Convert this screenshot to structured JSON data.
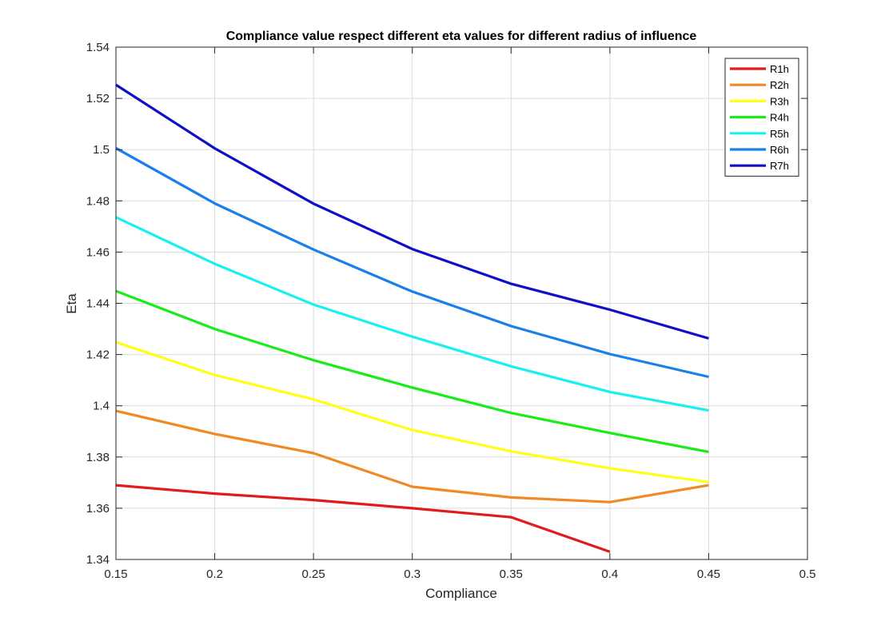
{
  "chart_data": {
    "type": "line",
    "title": "Compliance value respect different eta values for different radius of influence",
    "xlabel": "Compliance",
    "ylabel": "Eta",
    "xlim": [
      0.15,
      0.5
    ],
    "ylim": [
      1.34,
      1.54
    ],
    "xticks": [
      0.15,
      0.2,
      0.25,
      0.3,
      0.35,
      0.4,
      0.45,
      0.5
    ],
    "xtick_labels": [
      "0.15",
      "0.2",
      "0.25",
      "0.3",
      "0.35",
      "0.4",
      "0.45",
      "0.5"
    ],
    "yticks": [
      1.34,
      1.36,
      1.38,
      1.4,
      1.42,
      1.44,
      1.46,
      1.48,
      1.5,
      1.52,
      1.54
    ],
    "ytick_labels": [
      "1.34",
      "1.36",
      "1.38",
      "1.4",
      "1.42",
      "1.44",
      "1.46",
      "1.48",
      "1.5",
      "1.52",
      "1.54"
    ],
    "grid": true,
    "legend_position": "top-right",
    "series": [
      {
        "name": "R1h",
        "color": "#e31a1c",
        "x": [
          0.15,
          0.2,
          0.25,
          0.3,
          0.35,
          0.4
        ],
        "values": [
          1.369,
          1.3657,
          1.3632,
          1.36,
          1.3565,
          1.343
        ]
      },
      {
        "name": "R2h",
        "color": "#f08a24",
        "x": [
          0.15,
          0.2,
          0.25,
          0.3,
          0.35,
          0.4,
          0.45
        ],
        "values": [
          1.398,
          1.389,
          1.3815,
          1.3684,
          1.3642,
          1.3624,
          1.369
        ]
      },
      {
        "name": "R3h",
        "color": "#ffff1a",
        "x": [
          0.15,
          0.2,
          0.25,
          0.3,
          0.35,
          0.4,
          0.45
        ],
        "values": [
          1.4248,
          1.412,
          1.4025,
          1.3905,
          1.3822,
          1.3756,
          1.3702
        ]
      },
      {
        "name": "R4h",
        "color": "#1aeb1a",
        "x": [
          0.15,
          0.2,
          0.25,
          0.3,
          0.35,
          0.4,
          0.45
        ],
        "values": [
          1.4448,
          1.43,
          1.4178,
          1.4071,
          1.3972,
          1.3894,
          1.382
        ]
      },
      {
        "name": "R5h",
        "color": "#1af0f0",
        "x": [
          0.15,
          0.2,
          0.25,
          0.3,
          0.35,
          0.4,
          0.45
        ],
        "values": [
          1.4736,
          1.4554,
          1.4395,
          1.427,
          1.4154,
          1.4054,
          1.3982
        ]
      },
      {
        "name": "R6h",
        "color": "#1a7fe8",
        "x": [
          0.15,
          0.2,
          0.25,
          0.3,
          0.35,
          0.4,
          0.45
        ],
        "values": [
          1.5006,
          1.479,
          1.461,
          1.4446,
          1.4311,
          1.4202,
          1.4113
        ]
      },
      {
        "name": "R7h",
        "color": "#0f0fc8",
        "x": [
          0.15,
          0.2,
          0.25,
          0.3,
          0.35,
          0.4,
          0.45
        ],
        "values": [
          1.5253,
          1.5005,
          1.4789,
          1.4612,
          1.4476,
          1.4375,
          1.4263
        ]
      }
    ]
  }
}
